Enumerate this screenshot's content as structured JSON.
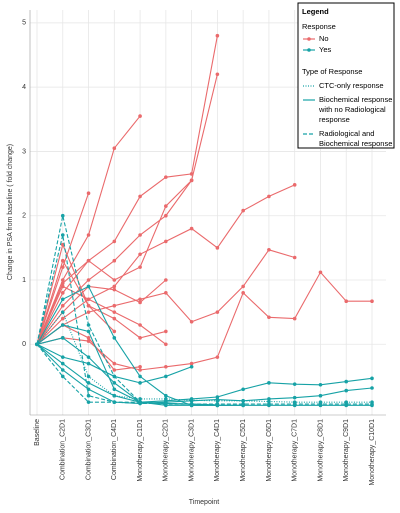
{
  "chart_data": {
    "type": "line",
    "ylabel": "Change in PSA from baseline ( fold change)",
    "xlabel": "Timepoint",
    "categories": [
      "Baseline",
      "Combination_C2D1",
      "Combination_C3D1",
      "Combination_C4D1",
      "Monotherapy_C1D1",
      "Monotherapy_C2D1",
      "Monotherapy_C3D1",
      "Monotherapy_C4D1",
      "Monotherapy_C5D1",
      "Monotherapy_C6D1",
      "Monotherapy_C7D1",
      "Monotherapy_C8D1",
      "Monotherapy_C9D1",
      "Monotherapy_C10D1"
    ],
    "ylim": [
      -1.1,
      5.2
    ],
    "yticks": [
      0,
      1,
      2,
      3,
      4,
      5
    ],
    "grid": true,
    "legend": {
      "title": "Legend",
      "response_title": "Response",
      "response_items": [
        {
          "label": "No",
          "color": "#ea6a6c"
        },
        {
          "label": "Yes",
          "color": "#17a2a6"
        }
      ],
      "type_title": "Type of Response",
      "type_items": [
        {
          "label_lines": [
            "CTC-only response"
          ],
          "dash": "dotted"
        },
        {
          "label_lines": [
            "Biochemical response",
            "with no Radiological",
            "response"
          ],
          "dash": "solid"
        },
        {
          "label_lines": [
            "Radiological and",
            "Biochemical response"
          ],
          "dash": "dashed"
        }
      ]
    },
    "series": [
      {
        "color": "#ea6a6c",
        "dash": "solid",
        "values": [
          0,
          0.95,
          1.3,
          1.6,
          2.3,
          2.6,
          2.65,
          4.8,
          null,
          null,
          null,
          null,
          null,
          null
        ]
      },
      {
        "color": "#ea6a6c",
        "dash": "solid",
        "values": [
          0,
          0.6,
          1.0,
          1.3,
          1.7,
          2.0,
          2.55,
          4.2,
          null,
          null,
          null,
          null,
          null,
          null
        ]
      },
      {
        "color": "#ea6a6c",
        "dash": "solid",
        "values": [
          0,
          1.0,
          1.7,
          3.05,
          3.55,
          null,
          null,
          null,
          null,
          null,
          null,
          null,
          null,
          null
        ]
      },
      {
        "color": "#ea6a6c",
        "dash": "solid",
        "values": [
          0,
          1.2,
          2.35,
          null,
          null,
          null,
          null,
          null,
          null,
          null,
          null,
          null,
          null,
          null
        ]
      },
      {
        "color": "#ea6a6c",
        "dash": "solid",
        "values": [
          0,
          0.4,
          0.7,
          0.9,
          1.4,
          1.6,
          1.8,
          1.5,
          2.08,
          2.3,
          2.48,
          null,
          null,
          null
        ]
      },
      {
        "color": "#ea6a6c",
        "dash": "solid",
        "values": [
          0,
          0.3,
          0.5,
          0.6,
          0.7,
          0.8,
          0.35,
          0.5,
          0.9,
          1.47,
          1.35,
          null,
          null,
          null
        ]
      },
      {
        "color": "#ea6a6c",
        "dash": "solid",
        "values": [
          0,
          0.1,
          0.05,
          -0.3,
          -0.4,
          -0.35,
          -0.3,
          -0.2,
          0.8,
          0.42,
          0.4,
          1.12,
          0.67,
          0.67
        ]
      },
      {
        "color": "#ea6a6c",
        "dash": "solid",
        "values": [
          0,
          0.5,
          0.9,
          0.85,
          0.65,
          1.0,
          null,
          null,
          null,
          null,
          null,
          null,
          null,
          null
        ]
      },
      {
        "color": "#ea6a6c",
        "dash": "solid",
        "values": [
          0,
          0.8,
          1.3,
          1.0,
          1.2,
          2.15,
          2.55,
          null,
          null,
          null,
          null,
          null,
          null,
          null
        ]
      },
      {
        "color": "#ea6a6c",
        "dash": "solid",
        "values": [
          0,
          1.3,
          0.6,
          0.4,
          0.1,
          0.2,
          null,
          null,
          null,
          null,
          null,
          null,
          null,
          null
        ]
      },
      {
        "color": "#ea6a6c",
        "dash": "solid",
        "values": [
          0,
          0.3,
          0.1,
          -0.4,
          -0.35,
          null,
          null,
          null,
          null,
          null,
          null,
          null,
          null,
          null
        ]
      },
      {
        "color": "#ea6a6c",
        "dash": "solid",
        "values": [
          0,
          1.55,
          0.6,
          0.2,
          null,
          null,
          null,
          null,
          null,
          null,
          null,
          null,
          null,
          null
        ]
      },
      {
        "color": "#ea6a6c",
        "dash": "solid",
        "values": [
          0,
          0.9,
          0.7,
          0.5,
          0.3,
          0.0,
          null,
          null,
          null,
          null,
          null,
          null,
          null,
          null
        ]
      },
      {
        "color": "#17a2a6",
        "dash": "solid",
        "values": [
          0,
          -0.3,
          -0.6,
          -0.8,
          -0.9,
          -0.88,
          -0.85,
          -0.82,
          -0.7,
          -0.6,
          -0.62,
          -0.63,
          -0.58,
          -0.53
        ]
      },
      {
        "color": "#17a2a6",
        "dash": "solid",
        "values": [
          0,
          -0.4,
          -0.7,
          -0.9,
          -0.92,
          -0.9,
          -0.88,
          -0.86,
          -0.88,
          -0.85,
          -0.83,
          -0.8,
          -0.72,
          -0.68
        ]
      },
      {
        "color": "#17a2a6",
        "dash": "solid",
        "values": [
          0,
          0.1,
          -0.2,
          -0.6,
          -0.9,
          -0.92,
          -0.93,
          -0.95,
          -0.95,
          -0.95,
          -0.95,
          -0.95,
          -0.95,
          -0.95
        ]
      },
      {
        "color": "#17a2a6",
        "dash": "solid",
        "values": [
          0,
          -0.2,
          -0.3,
          -0.5,
          -0.6,
          -0.5,
          -0.35,
          null,
          null,
          null,
          null,
          null,
          null,
          null
        ]
      },
      {
        "color": "#17a2a6",
        "dash": "solid",
        "values": [
          0,
          0.7,
          0.9,
          0.1,
          -0.5,
          -0.8,
          -0.95,
          -0.95,
          null,
          null,
          null,
          null,
          null,
          null
        ]
      },
      {
        "color": "#17a2a6",
        "dash": "solid",
        "values": [
          0,
          0.3,
          0.2,
          -0.7,
          -0.9,
          -0.95,
          -0.95,
          -0.95,
          -0.95,
          null,
          null,
          null,
          null,
          null
        ]
      },
      {
        "color": "#17a2a6",
        "dash": "dashed",
        "values": [
          0,
          2.0,
          0.3,
          -0.5,
          -0.9,
          -0.93,
          -0.93,
          -0.94,
          null,
          null,
          null,
          null,
          null,
          null
        ]
      },
      {
        "color": "#17a2a6",
        "dash": "dashed",
        "values": [
          0,
          1.7,
          -0.8,
          -0.9,
          -0.9,
          -0.92,
          null,
          null,
          null,
          null,
          null,
          null,
          null,
          null
        ]
      },
      {
        "color": "#17a2a6",
        "dash": "dashed",
        "values": [
          0,
          -0.5,
          -0.9,
          -0.9,
          -0.92,
          -0.92,
          -0.93,
          -0.93,
          -0.93,
          -0.93,
          -0.93,
          -0.93,
          -0.93,
          -0.93
        ]
      },
      {
        "color": "#17a2a6",
        "dash": "dotted",
        "values": [
          0,
          0.5,
          -0.5,
          -0.8,
          -0.85,
          -0.85,
          -0.87,
          -0.88,
          -0.88,
          -0.89,
          -0.9,
          -0.9,
          -0.9,
          -0.9
        ]
      }
    ]
  }
}
